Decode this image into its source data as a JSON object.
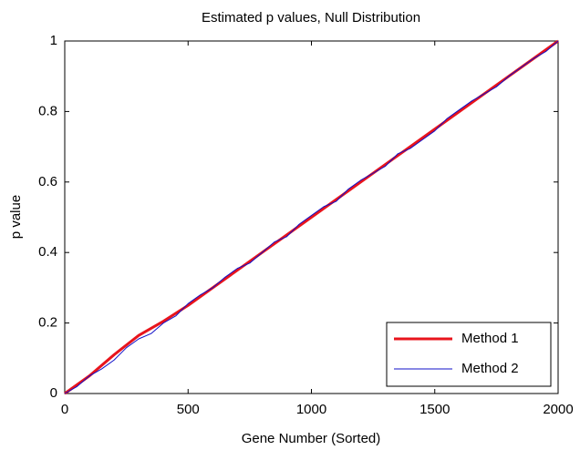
{
  "chart_data": {
    "type": "line",
    "title": "Estimated p values, Null Distribution",
    "xlabel": "Gene Number (Sorted)",
    "ylabel": "p value",
    "xlim": [
      0,
      2000
    ],
    "xticks": [
      0,
      500,
      1000,
      1500,
      2000
    ],
    "ylim": [
      0,
      1
    ],
    "yticks": [
      0,
      0.2,
      0.4,
      0.6,
      0.8,
      1
    ],
    "grid": false,
    "legend": "lower right",
    "series": [
      {
        "name": "Method 1",
        "color": "#e8141c",
        "width": 3,
        "x": [
          0,
          100,
          200,
          300,
          400,
          500,
          600,
          700,
          800,
          900,
          1000,
          1100,
          1200,
          1300,
          1400,
          1500,
          1600,
          1700,
          1800,
          1900,
          2000
        ],
        "values": [
          0,
          0.05,
          0.11,
          0.165,
          0.205,
          0.25,
          0.3,
          0.35,
          0.4,
          0.45,
          0.5,
          0.55,
          0.6,
          0.65,
          0.7,
          0.75,
          0.8,
          0.85,
          0.9,
          0.95,
          1.0
        ]
      },
      {
        "name": "Method 2",
        "color": "#1010c8",
        "width": 1,
        "x": [
          0,
          50,
          100,
          150,
          200,
          250,
          300,
          350,
          400,
          450,
          500,
          550,
          600,
          650,
          700,
          750,
          800,
          850,
          900,
          950,
          1000,
          1050,
          1100,
          1150,
          1200,
          1250,
          1300,
          1350,
          1400,
          1450,
          1500,
          1550,
          1600,
          1650,
          1700,
          1750,
          1800,
          1850,
          1900,
          1950,
          2000
        ],
        "values": [
          0,
          0.02,
          0.05,
          0.07,
          0.095,
          0.13,
          0.155,
          0.17,
          0.2,
          0.22,
          0.255,
          0.28,
          0.3,
          0.33,
          0.355,
          0.37,
          0.4,
          0.43,
          0.445,
          0.48,
          0.505,
          0.53,
          0.545,
          0.58,
          0.605,
          0.625,
          0.645,
          0.68,
          0.695,
          0.72,
          0.745,
          0.78,
          0.805,
          0.83,
          0.85,
          0.87,
          0.9,
          0.925,
          0.95,
          0.97,
          1.0
        ]
      }
    ]
  }
}
